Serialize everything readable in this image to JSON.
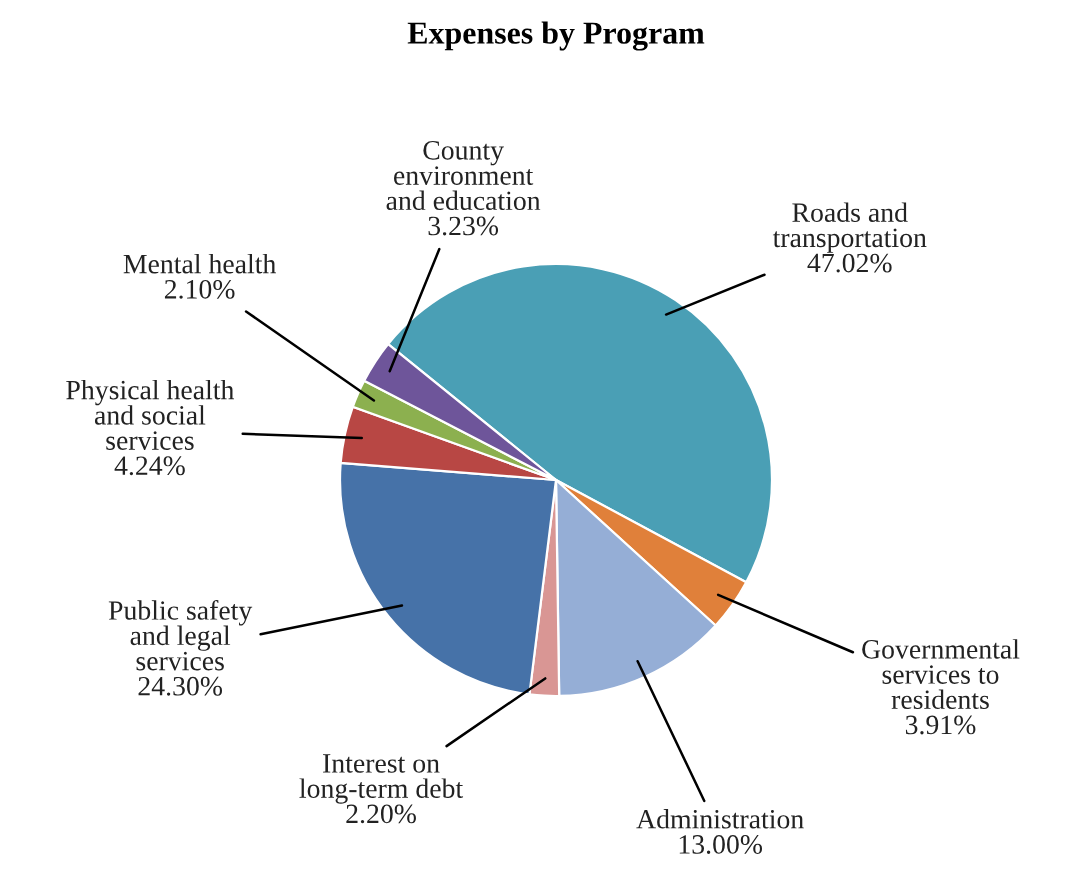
{
  "chart_data": {
    "type": "pie",
    "title": "Expenses by Program",
    "categories": [
      "Roads and\ntransportation",
      "Governmental\nservices to\nresidents",
      "Administration",
      "Interest on\nlong-term debt",
      "Public safety\nand legal\nservices",
      "Physical health\nand social\nservices",
      "Mental health",
      "County\nenvironment\nand education"
    ],
    "values": [
      47.02,
      3.91,
      13.0,
      2.2,
      24.3,
      4.24,
      2.1,
      3.23
    ],
    "value_labels": [
      "47.02%",
      "3.91%",
      "13.00%",
      "2.20%",
      "24.30%",
      "4.24%",
      "2.10%",
      "3.23%"
    ],
    "colors": [
      "#4a9fb5",
      "#e0803a",
      "#95aed6",
      "#d99694",
      "#4672a8",
      "#b84744",
      "#8cb04f",
      "#6e559a"
    ]
  }
}
